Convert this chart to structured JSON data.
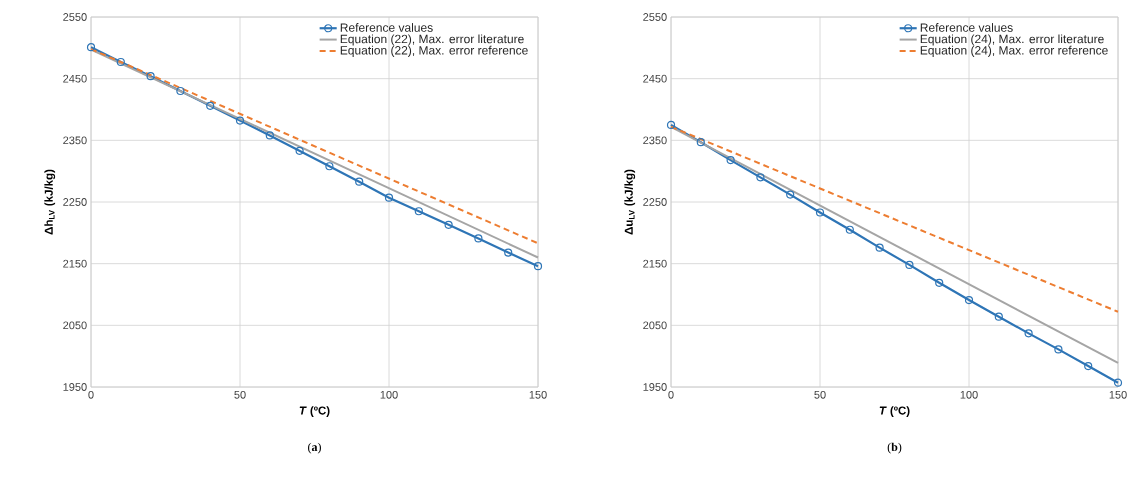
{
  "chart_data": [
    {
      "type": "line",
      "xlabel": "*T* (ºC)",
      "ylabel": "Δh$_{LV}$ (kJ/kg)",
      "xlim": [
        0,
        150
      ],
      "ylim": [
        1950,
        2550
      ],
      "xticks": [
        0,
        50,
        100,
        150
      ],
      "yticks": [
        1950,
        2050,
        2150,
        2250,
        2350,
        2450,
        2550
      ],
      "grid": true,
      "legend": "top right",
      "annotations": [
        "(**a**)"
      ],
      "series": [
        {
          "name": "Reference values",
          "color": "#2e75b6",
          "marker": "circle",
          "line_style": "solid",
          "x": [
            0,
            10,
            20,
            30,
            40,
            50,
            60,
            70,
            80,
            90,
            100,
            110,
            120,
            130,
            140,
            150
          ],
          "values": [
            2501,
            2477,
            2454,
            2430,
            2406,
            2382,
            2358,
            2333,
            2308,
            2283,
            2257,
            2235,
            2213,
            2191,
            2168,
            2146
          ]
        },
        {
          "name": "Equation (22), Max. error literature",
          "color": "#a5a5a5",
          "marker": "none",
          "line_style": "solid",
          "x": [
            0,
            150
          ],
          "values": [
            2497,
            2160
          ]
        },
        {
          "name": "Equation (22), Max. error reference",
          "color": "#ed7d31",
          "marker": "none",
          "line_style": "dashed",
          "x": [
            0,
            150
          ],
          "values": [
            2498,
            2183
          ]
        }
      ]
    },
    {
      "type": "line",
      "xlabel": "*T* (ºC)",
      "ylabel": "Δu$_{LV}$ (kJ/kg)",
      "xlim": [
        0,
        150
      ],
      "ylim": [
        1950,
        2550
      ],
      "xticks": [
        0,
        50,
        100,
        150
      ],
      "yticks": [
        1950,
        2050,
        2150,
        2250,
        2350,
        2450,
        2550
      ],
      "grid": true,
      "legend": "top right",
      "annotations": [
        "(**b**)"
      ],
      "series": [
        {
          "name": "Reference values",
          "color": "#2e75b6",
          "marker": "circle",
          "line_style": "solid",
          "x": [
            0,
            10,
            20,
            30,
            40,
            50,
            60,
            70,
            80,
            90,
            100,
            110,
            120,
            130,
            140,
            150
          ],
          "values": [
            2375,
            2347,
            2318,
            2290,
            2262,
            2233,
            2205,
            2176,
            2148,
            2119,
            2091,
            2064,
            2037,
            2011,
            1984,
            1957
          ]
        },
        {
          "name": "Equation (24), Max. error literature",
          "color": "#a5a5a5",
          "marker": "none",
          "line_style": "solid",
          "x": [
            0,
            150
          ],
          "values": [
            2372,
            1989
          ]
        },
        {
          "name": "Equation (24), Max. error reference",
          "color": "#ed7d31",
          "marker": "none",
          "line_style": "dashed",
          "x": [
            0,
            150
          ],
          "values": [
            2372,
            2072
          ]
        }
      ]
    }
  ]
}
